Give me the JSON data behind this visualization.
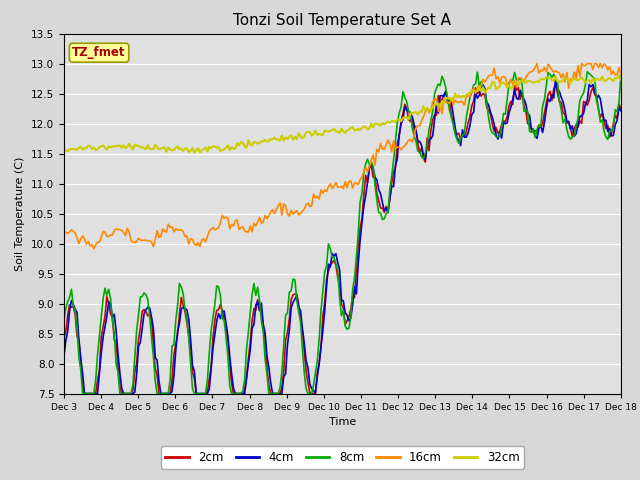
{
  "title": "Tonzi Soil Temperature Set A",
  "xlabel": "Time",
  "ylabel": "Soil Temperature (C)",
  "ylim": [
    7.5,
    13.5
  ],
  "xlim": [
    0,
    15
  ],
  "label_box_text": "TZ_fmet",
  "label_box_color": "#ffff99",
  "label_box_text_color": "#aa0000",
  "label_box_edge_color": "#999900",
  "fig_bg_color": "#d8d8d8",
  "plot_bg_color": "#e0e0e0",
  "legend_entries": [
    "2cm",
    "4cm",
    "8cm",
    "16cm",
    "32cm"
  ],
  "line_colors": [
    "#cc0000",
    "#0000cc",
    "#00aa00",
    "#ff8800",
    "#cccc00"
  ],
  "line_width": 1.2,
  "xtick_labels": [
    "Dec 3",
    "Dec 4",
    "Dec 5",
    "Dec 6",
    "Dec 7",
    "Dec 8",
    "Dec 9",
    "Dec 10",
    "Dec 11",
    "Dec 12",
    "Dec 13",
    "Dec 14",
    "Dec 15",
    "Dec 16",
    "Dec 17",
    "Dec 18"
  ],
  "grid_color": "#ffffff",
  "ytick_spacing": 0.5
}
